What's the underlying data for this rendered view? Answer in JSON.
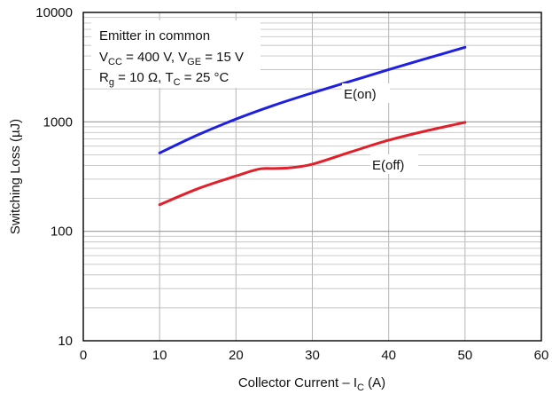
{
  "chart_data": {
    "type": "line",
    "xlabel": "Collector Current – I",
    "xlabel_sub": "C",
    "xlabel_unit": " (A)",
    "ylabel": "Switching Loss (µJ)",
    "xlim": [
      0,
      60
    ],
    "ylim": [
      10,
      10000
    ],
    "yscale": "log",
    "grid": true,
    "x_ticks": [
      "0",
      "10",
      "20",
      "30",
      "40",
      "50",
      "60"
    ],
    "y_ticks": [
      "10",
      "100",
      "1000",
      "10000"
    ],
    "annotation": {
      "line1": "Emitter in common",
      "line2": {
        "a": "V",
        "a_sub": "CC",
        "b": " = 400 V, V",
        "b_sub": "GE",
        "c": " = 15 V"
      },
      "line3": {
        "a": "R",
        "a_sub": "g",
        "b": " = 10 Ω, T",
        "b_sub": "C",
        "c": " = 25 °C"
      }
    },
    "series": [
      {
        "name": "E(on)",
        "color": "#1f1fe0",
        "x": [
          10,
          15,
          20,
          25,
          30,
          35,
          40,
          45,
          50
        ],
        "values": [
          520,
          760,
          1060,
          1420,
          1840,
          2350,
          3000,
          3800,
          4800
        ]
      },
      {
        "name": "E(off)",
        "color": "#e0202a",
        "x": [
          10,
          15,
          20,
          23,
          25,
          27,
          30,
          35,
          40,
          45,
          50
        ],
        "values": [
          175,
          245,
          320,
          370,
          375,
          380,
          410,
          530,
          680,
          830,
          990
        ]
      }
    ]
  }
}
